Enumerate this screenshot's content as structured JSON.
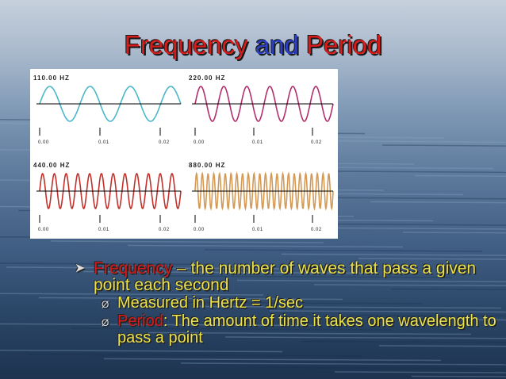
{
  "title": {
    "parts": [
      "Frequency",
      "and",
      "Period"
    ]
  },
  "panels": [
    {
      "label": "110.00 HZ",
      "ticks": [
        "0.00",
        "0.01",
        "0.02"
      ]
    },
    {
      "label": "220.00 HZ",
      "ticks": [
        "0.00",
        "0.01",
        "0.02"
      ]
    },
    {
      "label": "440.00 HZ",
      "ticks": [
        "0.00",
        "0.01",
        "0.02"
      ]
    },
    {
      "label": "880.00 HZ",
      "ticks": [
        "0.00",
        "0.01",
        "0.02"
      ]
    }
  ],
  "bullets": [
    {
      "term": "Frequency",
      "text": " – the number of waves that pass a given point each second",
      "sub": [
        {
          "term": null,
          "text": "Measured in Hertz = 1/sec"
        },
        {
          "term": "Period",
          "text": ": The amount of time it takes one wavelength to pass a point"
        }
      ]
    }
  ]
}
